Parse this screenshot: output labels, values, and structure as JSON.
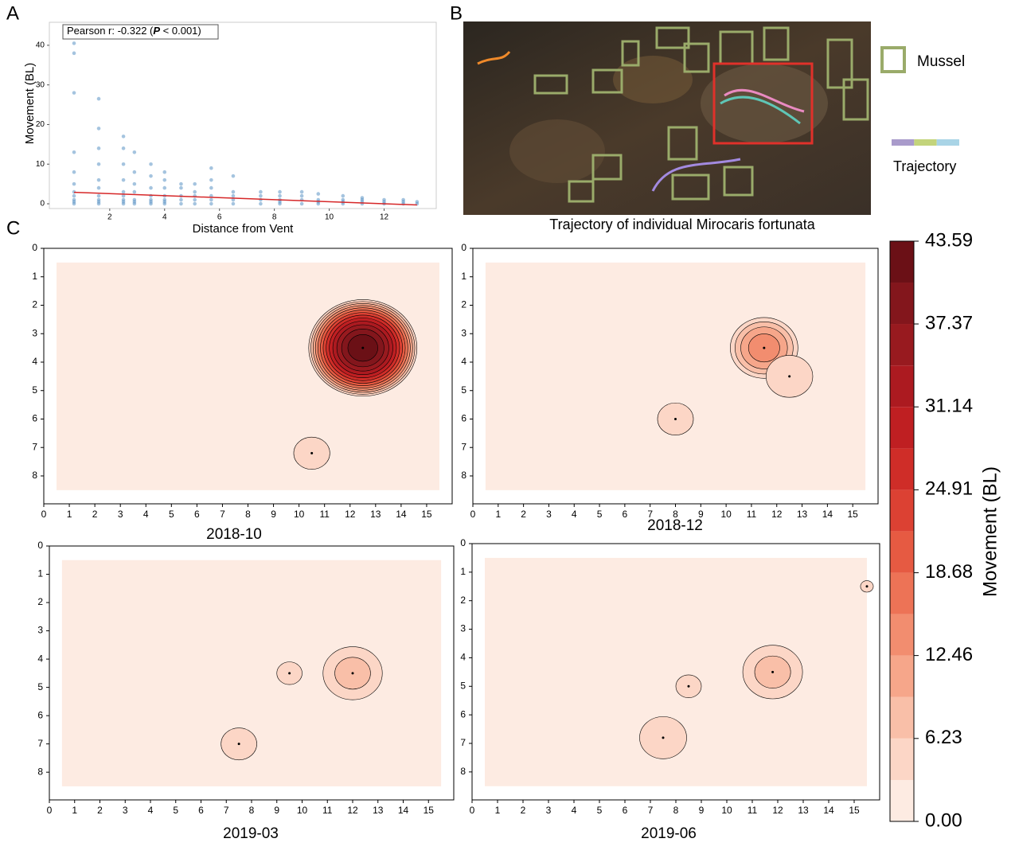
{
  "panel_labels": [
    "A",
    "B",
    "C"
  ],
  "chart_data": [
    {
      "type": "scatter",
      "xlabel": "Distance from Vent",
      "ylabel": "Movement (BL)",
      "annotation": [
        "Pearson r:  -0.322 (",
        "P",
        " < 0.001)"
      ],
      "color": "#5b93c4",
      "xlim": [
        -0.2,
        13.9
      ],
      "ylim": [
        -1.2,
        45.8
      ],
      "xticks": [
        2,
        4,
        6,
        8,
        10,
        12
      ],
      "yticks": [
        0,
        10,
        20,
        30,
        40
      ],
      "x": [
        0.7,
        0.7,
        0.7,
        0.7,
        0.7,
        0.7,
        0.7,
        0.7,
        0.7,
        0.7,
        0.7,
        1.6,
        1.6,
        1.6,
        1.6,
        1.6,
        1.6,
        1.6,
        1.6,
        1.6,
        1.6,
        2.5,
        2.5,
        2.5,
        2.5,
        2.5,
        2.5,
        2.5,
        2.5,
        2.5,
        2.9,
        2.9,
        2.9,
        2.9,
        2.9,
        2.9,
        2.9,
        3.5,
        3.5,
        3.5,
        3.5,
        3.5,
        3.5,
        3.5,
        4.0,
        4.0,
        4.0,
        4.0,
        4.0,
        4.0,
        4.0,
        4.6,
        4.6,
        4.6,
        4.6,
        4.6,
        5.1,
        5.1,
        5.1,
        5.1,
        5.1,
        5.7,
        5.7,
        5.7,
        5.7,
        5.7,
        5.7,
        6.5,
        6.5,
        6.5,
        6.5,
        6.5,
        7.5,
        7.5,
        7.5,
        7.5,
        8.2,
        8.2,
        8.2,
        8.2,
        8.2,
        9.0,
        9.0,
        9.0,
        9.0,
        9.6,
        9.6,
        9.6,
        9.6,
        10.5,
        10.5,
        10.5,
        10.5,
        11.2,
        11.2,
        11.2,
        11.2,
        12.0,
        12.0,
        12.0,
        12.7,
        12.7,
        12.7,
        13.2,
        13.2
      ],
      "y": [
        0,
        0.5,
        1,
        2,
        3,
        5,
        8,
        13,
        28,
        38,
        40.5,
        0,
        0.5,
        1,
        2,
        4,
        6,
        10,
        14,
        19,
        26.5,
        0,
        0.5,
        1,
        2,
        3,
        6,
        10,
        14,
        17,
        0,
        0.5,
        1,
        3,
        5,
        8,
        13,
        0,
        0.5,
        1,
        2,
        4,
        7,
        10,
        0,
        0.5,
        1,
        2,
        4,
        6,
        8,
        0,
        1,
        2,
        4,
        5,
        0,
        1,
        2,
        3,
        5,
        0,
        1,
        2,
        4,
        6,
        9,
        0,
        1,
        2,
        3,
        7,
        0,
        1,
        2,
        3,
        0,
        0.5,
        1,
        2,
        3,
        0,
        1,
        2,
        3,
        0,
        0.5,
        1,
        2.5,
        0,
        0.5,
        1,
        2,
        0,
        0.5,
        1,
        1.5,
        0,
        0.5,
        1,
        0,
        0.5,
        1,
        0,
        0.5
      ],
      "trend": {
        "color": "#d62728",
        "x": [
          0.7,
          13.2
        ],
        "y": [
          2.9,
          -0.3
        ]
      }
    },
    {
      "type": "image",
      "caption": "Trajectory of individual Mirocaris fortunata",
      "legend": [
        {
          "label": "Mussel",
          "color": "#9aab6a"
        }
      ],
      "trajectory": {
        "label": "Trajectory",
        "colors": [
          "#a99bcb",
          "#c3d47b",
          "#a9d4e6"
        ]
      }
    },
    {
      "type": "contour",
      "title": "2018-10",
      "xlim": [
        0,
        16
      ],
      "ylim": [
        0,
        8.98
      ],
      "xticks": [
        0,
        1,
        2,
        3,
        4,
        5,
        6,
        7,
        8,
        9,
        10,
        11,
        12,
        13,
        14,
        15
      ],
      "yticks": [
        0,
        1,
        2,
        3,
        4,
        5,
        6,
        7,
        8
      ],
      "extent": [
        0.5,
        15.5,
        0.5,
        8.5
      ],
      "hotspots": [
        {
          "x": 12.5,
          "y": 3.5,
          "value": 43.59
        },
        {
          "x": 10.5,
          "y": 7.2,
          "value": 4
        }
      ]
    },
    {
      "type": "contour",
      "title": "2018-12",
      "xlim": [
        0,
        16
      ],
      "ylim": [
        0,
        8.98
      ],
      "xticks": [
        0,
        1,
        2,
        3,
        4,
        5,
        6,
        7,
        8,
        9,
        10,
        11,
        12,
        13,
        14,
        15
      ],
      "yticks": [
        0,
        1,
        2,
        3,
        4,
        5,
        6,
        7,
        8
      ],
      "extent": [
        0.5,
        15.5,
        0.5,
        8.5
      ],
      "hotspots": [
        {
          "x": 11.5,
          "y": 3.5,
          "value": 15
        },
        {
          "x": 12.5,
          "y": 4.5,
          "value": 5
        },
        {
          "x": 8,
          "y": 6,
          "value": 4
        }
      ]
    },
    {
      "type": "contour",
      "title": "2019-03",
      "xlim": [
        0,
        16
      ],
      "ylim": [
        0,
        8.98
      ],
      "xticks": [
        0,
        1,
        2,
        3,
        4,
        5,
        6,
        7,
        8,
        9,
        10,
        11,
        12,
        13,
        14,
        15
      ],
      "yticks": [
        0,
        1,
        2,
        3,
        4,
        5,
        6,
        7,
        8
      ],
      "extent": [
        0.5,
        15.5,
        0.5,
        8.5
      ],
      "hotspots": [
        {
          "x": 12,
          "y": 4.5,
          "value": 8
        },
        {
          "x": 7.5,
          "y": 7,
          "value": 4
        },
        {
          "x": 9.5,
          "y": 4.5,
          "value": 3.5
        }
      ]
    },
    {
      "type": "contour",
      "title": "2019-06",
      "xlim": [
        0,
        16
      ],
      "ylim": [
        0,
        8.98
      ],
      "xticks": [
        0,
        1,
        2,
        3,
        4,
        5,
        6,
        7,
        8,
        9,
        10,
        11,
        12,
        13,
        14,
        15
      ],
      "yticks": [
        0,
        1,
        2,
        3,
        4,
        5,
        6,
        7,
        8
      ],
      "extent": [
        0.5,
        15.5,
        0.5,
        8.5
      ],
      "hotspots": [
        {
          "x": 11.8,
          "y": 4.5,
          "value": 8
        },
        {
          "x": 7.5,
          "y": 6.8,
          "value": 5
        },
        {
          "x": 8.5,
          "y": 5,
          "value": 3.5
        },
        {
          "x": 15.5,
          "y": 1.5,
          "value": 3.2
        }
      ]
    },
    {
      "type": "colorbar",
      "label": "Movement (BL)",
      "ylim": [
        0,
        43.59
      ],
      "levels": [
        0,
        3.11,
        6.23,
        9.34,
        12.46,
        15.57,
        18.68,
        21.8,
        24.91,
        28.02,
        31.14,
        34.25,
        37.37,
        40.48,
        43.59
      ],
      "colors": [
        "#fdebe2",
        "#fcd6c6",
        "#f9bfa8",
        "#f6a68a",
        "#f28d6f",
        "#ed7356",
        "#e65a42",
        "#dc4133",
        "#cf2d28",
        "#bf1f22",
        "#ac1a20",
        "#981a1f",
        "#83161c",
        "#6b1016"
      ],
      "yticks": [
        {
          "value": 0,
          "label": "0.00"
        },
        {
          "value": 6.23,
          "label": "6.23"
        },
        {
          "value": 12.46,
          "label": "12.46"
        },
        {
          "value": 18.68,
          "label": "18.68"
        },
        {
          "value": 24.91,
          "label": "24.91"
        },
        {
          "value": 31.14,
          "label": "31.14"
        },
        {
          "value": 37.37,
          "label": "37.37"
        },
        {
          "value": 43.59,
          "label": "43.59"
        }
      ]
    }
  ]
}
